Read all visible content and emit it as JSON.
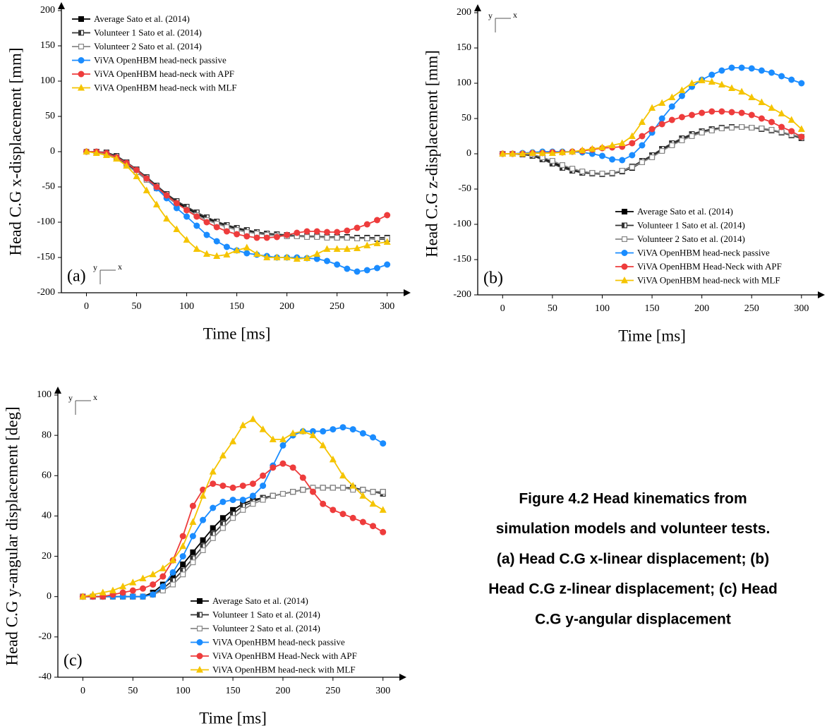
{
  "chart_data": [
    {
      "type": "line",
      "y_label": "Head C.G x-displacement [mm]",
      "x_label": "Time [ms]",
      "panel_label": "(a)",
      "orientation_icon": {
        "y": "y",
        "x": "x"
      },
      "legend": "upper left",
      "xlim": [
        -25,
        315
      ],
      "xticks": [
        0,
        50,
        100,
        150,
        200,
        250,
        300
      ],
      "ylim": [
        -200,
        200
      ],
      "yticks": [
        -200,
        -150,
        -100,
        -50,
        0,
        50,
        100,
        150,
        200
      ],
      "x": [
        0,
        10,
        20,
        30,
        40,
        50,
        60,
        70,
        80,
        90,
        100,
        110,
        120,
        130,
        140,
        150,
        160,
        170,
        180,
        190,
        200,
        210,
        220,
        230,
        240,
        250,
        260,
        270,
        280,
        290,
        300
      ],
      "series": [
        {
          "name": "Average Sato et al. (2014)",
          "color": "#000000",
          "marker": "square",
          "values": [
            0,
            0,
            -2,
            -8,
            -17,
            -27,
            -38,
            -50,
            -62,
            -72,
            -80,
            -88,
            -95,
            -100,
            -105,
            -109,
            -112,
            -115,
            -117,
            -118,
            -119,
            -119,
            -120,
            -120,
            -121,
            -121,
            -121,
            -122,
            -122,
            -122,
            -122
          ]
        },
        {
          "name": "Volunteer 1 Sato et al. (2014)",
          "color": "#333333",
          "marker": "square-half",
          "values": [
            0,
            0,
            -1,
            -6,
            -15,
            -25,
            -36,
            -48,
            -60,
            -70,
            -78,
            -86,
            -93,
            -99,
            -104,
            -108,
            -111,
            -114,
            -116,
            -117,
            -118,
            -119,
            -120,
            -120,
            -121,
            -122,
            -122,
            -123,
            -123,
            -124,
            -124
          ]
        },
        {
          "name": "Volunteer 2 Sato et al. (2014)",
          "color": "#888888",
          "marker": "square-open",
          "values": [
            0,
            -1,
            -3,
            -10,
            -19,
            -29,
            -40,
            -52,
            -64,
            -74,
            -82,
            -90,
            -97,
            -102,
            -107,
            -111,
            -114,
            -116,
            -118,
            -119,
            -120,
            -120,
            -121,
            -121,
            -122,
            -122,
            -122,
            -123,
            -123,
            -123,
            -123
          ]
        },
        {
          "name": "ViVA OpenHBM head-neck passive",
          "color": "#1a8cff",
          "marker": "circle",
          "values": [
            0,
            0,
            -2,
            -8,
            -16,
            -26,
            -38,
            -52,
            -66,
            -80,
            -92,
            -105,
            -118,
            -127,
            -135,
            -140,
            -144,
            -146,
            -148,
            -150,
            -150,
            -150,
            -151,
            -152,
            -155,
            -160,
            -166,
            -170,
            -168,
            -165,
            -160
          ]
        },
        {
          "name": "ViVA OpenHBM head-neck with APF",
          "color": "#ee3c3c",
          "marker": "circle",
          "values": [
            0,
            0,
            -2,
            -8,
            -16,
            -26,
            -38,
            -50,
            -62,
            -73,
            -83,
            -92,
            -100,
            -107,
            -113,
            -117,
            -120,
            -122,
            -122,
            -121,
            -118,
            -115,
            -113,
            -113,
            -114,
            -114,
            -112,
            -108,
            -103,
            -97,
            -90
          ]
        },
        {
          "name": "ViVA OpenHBM head-neck with MLF",
          "color": "#f5c400",
          "marker": "triangle",
          "values": [
            0,
            -2,
            -5,
            -10,
            -20,
            -35,
            -55,
            -75,
            -95,
            -110,
            -125,
            -138,
            -145,
            -148,
            -146,
            -140,
            -136,
            -145,
            -150,
            -150,
            -150,
            -152,
            -151,
            -145,
            -138,
            -138,
            -138,
            -137,
            -133,
            -130,
            -128
          ]
        }
      ]
    },
    {
      "type": "line",
      "y_label": "Head C.G z-displacement [mm]",
      "x_label": "Time [ms]",
      "panel_label": "(b)",
      "orientation_icon": {
        "y": "y",
        "x": "x"
      },
      "legend": "lower right",
      "xlim": [
        -25,
        315
      ],
      "xticks": [
        0,
        50,
        100,
        150,
        200,
        250,
        300
      ],
      "ylim": [
        -200,
        200
      ],
      "yticks": [
        -200,
        -150,
        -100,
        -50,
        0,
        50,
        100,
        150,
        200
      ],
      "x": [
        0,
        10,
        20,
        30,
        40,
        50,
        60,
        70,
        80,
        90,
        100,
        110,
        120,
        130,
        140,
        150,
        160,
        170,
        180,
        190,
        200,
        210,
        220,
        230,
        240,
        250,
        260,
        270,
        280,
        290,
        300
      ],
      "series": [
        {
          "name": "Average Sato et al. (2014)",
          "color": "#000000",
          "marker": "square",
          "values": [
            0,
            0,
            0,
            -2,
            -6,
            -12,
            -18,
            -22,
            -26,
            -27,
            -28,
            -28,
            -25,
            -20,
            -12,
            -4,
            5,
            13,
            20,
            26,
            30,
            34,
            36,
            37,
            38,
            37,
            36,
            34,
            30,
            27,
            24
          ]
        },
        {
          "name": "Volunteer 1 Sato et al. (2014)",
          "color": "#333333",
          "marker": "square-half",
          "values": [
            0,
            0,
            -1,
            -3,
            -8,
            -14,
            -20,
            -24,
            -27,
            -28,
            -29,
            -28,
            -24,
            -18,
            -10,
            -2,
            7,
            15,
            22,
            28,
            32,
            35,
            37,
            38,
            38,
            37,
            35,
            33,
            30,
            26,
            22
          ]
        },
        {
          "name": "Volunteer 2 Sato et al. (2014)",
          "color": "#888888",
          "marker": "square-open",
          "values": [
            0,
            0,
            0,
            -1,
            -5,
            -10,
            -16,
            -21,
            -25,
            -27,
            -28,
            -27,
            -24,
            -19,
            -12,
            -5,
            4,
            12,
            19,
            25,
            30,
            33,
            36,
            37,
            38,
            37,
            36,
            34,
            31,
            27,
            24
          ]
        },
        {
          "name": "ViVA OpenHBM head-neck passive",
          "color": "#1a8cff",
          "marker": "circle",
          "values": [
            0,
            0,
            1,
            2,
            3,
            3,
            3,
            3,
            2,
            0,
            -3,
            -8,
            -9,
            -2,
            12,
            30,
            50,
            67,
            82,
            95,
            105,
            112,
            118,
            122,
            122,
            121,
            118,
            115,
            110,
            105,
            100
          ]
        },
        {
          "name": "ViVA OpenHBM Head-Neck with APF",
          "color": "#ee3c3c",
          "marker": "circle",
          "values": [
            0,
            0,
            0,
            1,
            1,
            2,
            2,
            3,
            4,
            6,
            8,
            9,
            10,
            15,
            25,
            35,
            42,
            48,
            52,
            55,
            58,
            60,
            60,
            59,
            58,
            55,
            50,
            45,
            38,
            32,
            24
          ]
        },
        {
          "name": "ViVA OpenHBM head-neck with MLF",
          "color": "#f5c400",
          "marker": "triangle",
          "values": [
            0,
            0,
            0,
            1,
            1,
            1,
            2,
            3,
            5,
            7,
            9,
            12,
            15,
            25,
            45,
            65,
            72,
            80,
            90,
            100,
            104,
            102,
            98,
            93,
            88,
            80,
            73,
            65,
            57,
            48,
            35
          ]
        }
      ]
    },
    {
      "type": "line",
      "y_label": "Head C.G y-angular displacement [deg]",
      "x_label": "Time [ms]",
      "panel_label": "(c)",
      "orientation_icon": {
        "y": "y",
        "x": "x"
      },
      "legend": "lower center",
      "xlim": [
        -25,
        315
      ],
      "xticks": [
        0,
        50,
        100,
        150,
        200,
        250,
        300
      ],
      "ylim": [
        -40,
        100
      ],
      "yticks": [
        -40,
        -20,
        0,
        20,
        40,
        60,
        80,
        100
      ],
      "x": [
        0,
        10,
        20,
        30,
        40,
        50,
        60,
        70,
        80,
        90,
        100,
        110,
        120,
        130,
        140,
        150,
        160,
        170,
        180,
        190,
        200,
        210,
        220,
        230,
        240,
        250,
        260,
        270,
        280,
        290,
        300
      ],
      "series": [
        {
          "name": "Average Sato et al. (2014)",
          "color": "#000000",
          "marker": "square",
          "values": [
            0,
            0,
            0,
            0,
            0,
            0,
            0,
            2,
            6,
            10,
            16,
            22,
            28,
            34,
            39,
            43,
            46,
            48,
            49,
            50,
            51,
            52,
            53,
            54,
            54,
            54,
            54,
            54,
            53,
            52,
            52
          ]
        },
        {
          "name": "Volunteer 1 Sato et al. (2014)",
          "color": "#333333",
          "marker": "square-half",
          "values": [
            0,
            0,
            0,
            0,
            0,
            0,
            0,
            1,
            4,
            8,
            13,
            19,
            25,
            31,
            36,
            41,
            45,
            47,
            49,
            50,
            51,
            52,
            53,
            54,
            54,
            54,
            54,
            54,
            53,
            52,
            51
          ]
        },
        {
          "name": "Volunteer 2 Sato et al. (2014)",
          "color": "#888888",
          "marker": "square-open",
          "values": [
            0,
            0,
            0,
            0,
            0,
            0,
            0,
            1,
            3,
            6,
            11,
            17,
            23,
            29,
            34,
            39,
            43,
            46,
            48,
            50,
            51,
            52,
            53,
            54,
            54,
            54,
            54,
            53,
            53,
            52,
            52
          ]
        },
        {
          "name": "ViVA OpenHBM head-neck passive",
          "color": "#1a8cff",
          "marker": "circle",
          "values": [
            0,
            0,
            0,
            0,
            0,
            0,
            0,
            1,
            5,
            12,
            20,
            30,
            38,
            44,
            47,
            48,
            48,
            50,
            55,
            65,
            75,
            80,
            82,
            82,
            82,
            83,
            84,
            83,
            81,
            79,
            76
          ]
        },
        {
          "name": "ViVA OpenHBM Head-Neck with APF",
          "color": "#ee3c3c",
          "marker": "circle",
          "values": [
            0,
            0,
            0,
            1,
            2,
            3,
            4,
            6,
            10,
            18,
            30,
            45,
            53,
            56,
            55,
            54,
            55,
            56,
            60,
            64,
            66,
            64,
            59,
            52,
            46,
            43,
            41,
            39,
            37,
            35,
            32
          ]
        },
        {
          "name": "ViVA OpenHBM head-neck with MLF",
          "color": "#f5c400",
          "marker": "triangle",
          "values": [
            0,
            1,
            2,
            3,
            5,
            7,
            9,
            11,
            14,
            18,
            25,
            37,
            50,
            62,
            70,
            77,
            85,
            88,
            83,
            78,
            78,
            81,
            82,
            80,
            75,
            68,
            60,
            55,
            50,
            46,
            43
          ]
        }
      ]
    }
  ],
  "caption": [
    "Figure 4.2 Head kinematics from",
    "simulation models and volunteer tests.",
    "(a) Head C.G x-linear displacement; (b)",
    "Head C.G z-linear displacement; (c) Head",
    "C.G y-angular displacement"
  ]
}
